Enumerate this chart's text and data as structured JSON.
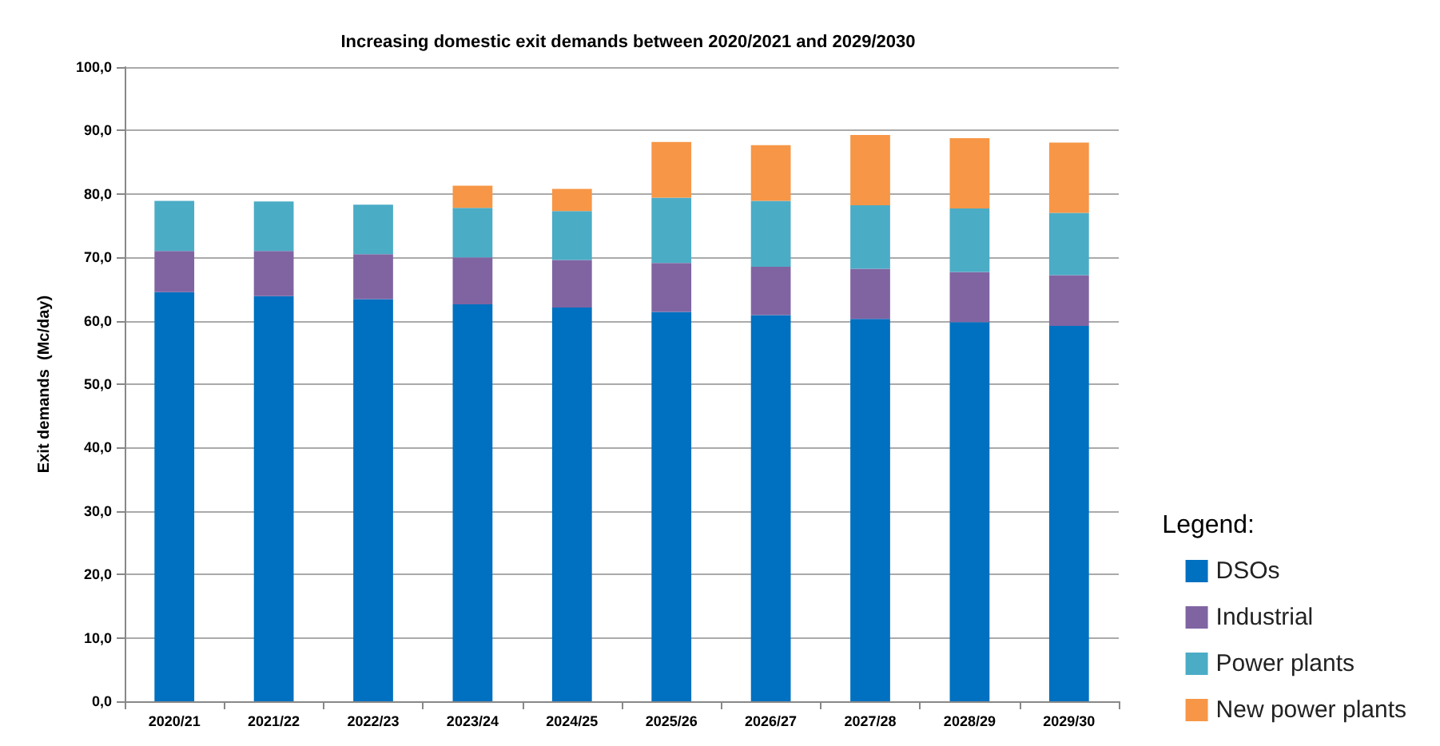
{
  "chart_data": {
    "type": "bar",
    "title": "Increasing domestic exit demands between 2020/2021 and 2029/2030",
    "ylabel": "Exit demands  (Mc/day)",
    "legend_title": "Legend:",
    "categories": [
      "2020/21",
      "2021/22",
      "2022/23",
      "2023/24",
      "2024/25",
      "2025/26",
      "2026/27",
      "2027/28",
      "2028/29",
      "2029/30"
    ],
    "stacked": true,
    "series": [
      {
        "name": "DSOs",
        "color": "#0070c0",
        "values": [
          64.5,
          63.9,
          63.4,
          62.6,
          62.1,
          61.4,
          60.9,
          60.3,
          59.8,
          59.2
        ]
      },
      {
        "name": "Industrial",
        "color": "#8064a2",
        "values": [
          6.5,
          7.1,
          7.1,
          7.4,
          7.5,
          7.7,
          7.6,
          7.9,
          7.9,
          8.0
        ]
      },
      {
        "name": "Power plants",
        "color": "#4bacc6",
        "values": [
          7.9,
          7.8,
          7.8,
          7.8,
          7.7,
          10.3,
          10.4,
          10.0,
          10.0,
          9.8
        ]
      },
      {
        "name": "New power plants",
        "color": "#f79646",
        "values": [
          null,
          null,
          null,
          3.5,
          3.5,
          8.8,
          8.8,
          11.1,
          11.1,
          11.1
        ]
      }
    ],
    "ylim": [
      0,
      100
    ],
    "yticks": [
      {
        "value": 0,
        "label": "0,0"
      },
      {
        "value": 10,
        "label": "10,0"
      },
      {
        "value": 20,
        "label": "20,0"
      },
      {
        "value": 30,
        "label": "30,0"
      },
      {
        "value": 40,
        "label": "40,0"
      },
      {
        "value": 50,
        "label": "50,0"
      },
      {
        "value": 60,
        "label": "60,0"
      },
      {
        "value": 70,
        "label": "70,0"
      },
      {
        "value": 80,
        "label": "80,0"
      },
      {
        "value": 90,
        "label": "90,0"
      },
      {
        "value": 100,
        "label": "100,0"
      }
    ],
    "grid": "y",
    "legend": "bottom right"
  }
}
